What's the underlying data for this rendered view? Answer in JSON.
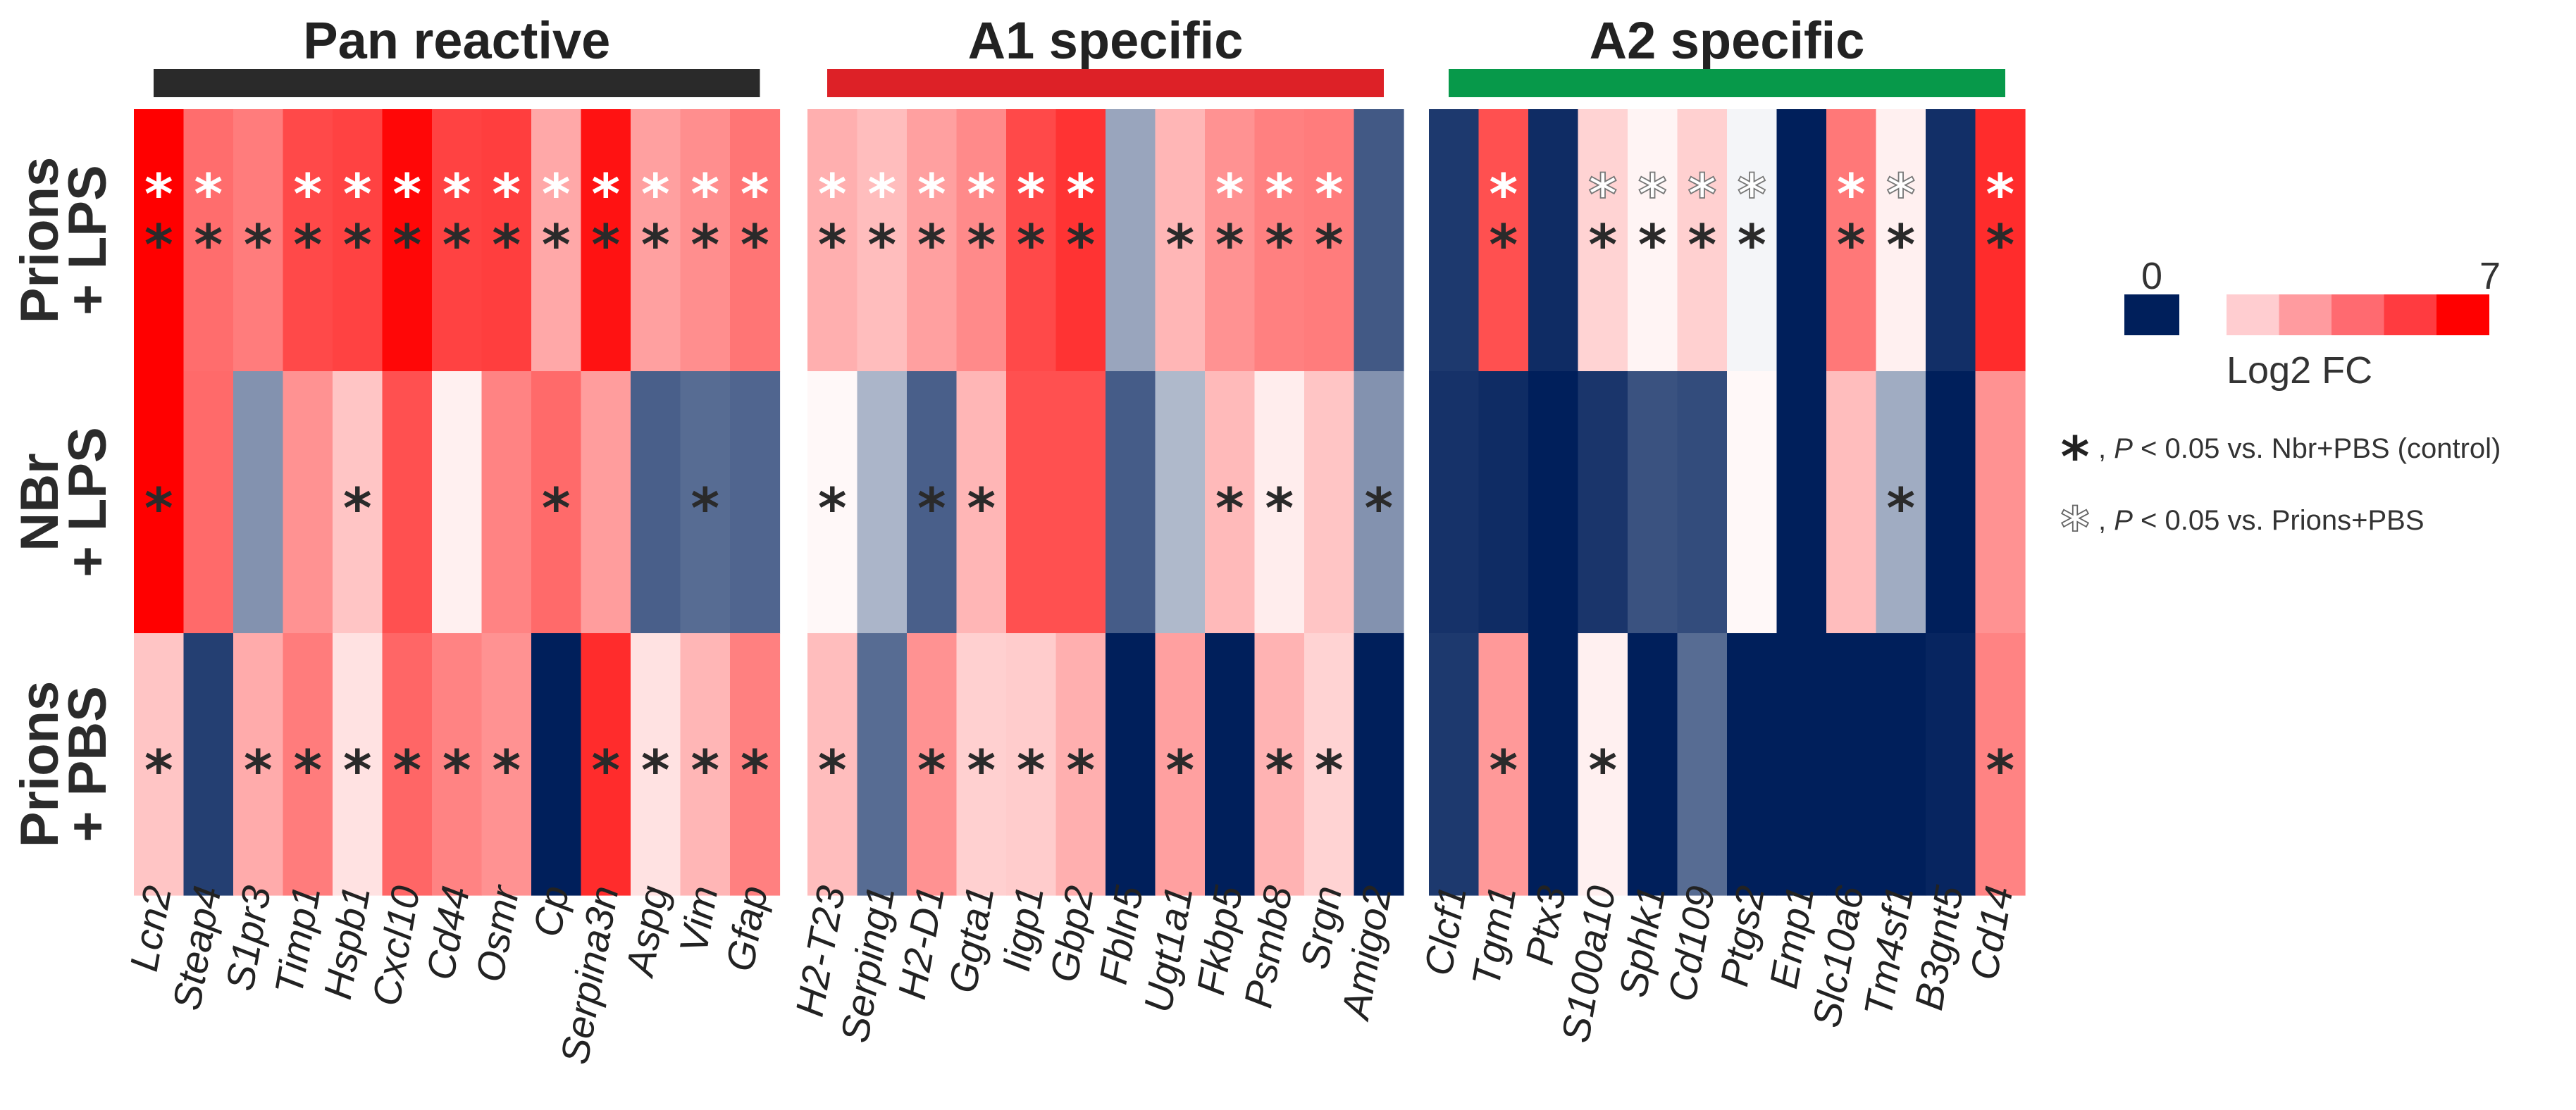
{
  "chart_data": {
    "type": "heatmap",
    "groups": [
      {
        "title": "Pan reactive",
        "bar_color": "#2a2a2a"
      },
      {
        "title": "A1 specific",
        "bar_color": "#dd2127"
      },
      {
        "title": "A2 specific",
        "bar_color": "#07994a"
      }
    ],
    "rows": [
      {
        "line1": "Prions",
        "line2": "+ LPS"
      },
      {
        "line1": "NBr",
        "line2": "+ LPS"
      },
      {
        "line1": "Prions",
        "line2": "+ PBS"
      }
    ],
    "genes": [
      [
        "Lcn2",
        "Steap4",
        "S1pr3",
        "Timp1",
        "Hspb1",
        "Cxcl10",
        "Cd44",
        "Osmr",
        "Cp",
        "Serpina3n",
        "Aspg",
        "Vim",
        "Gfap"
      ],
      [
        "H2-T23",
        "Serping1",
        "H2-D1",
        "Ggta1",
        "Iigp1",
        "Gbp2",
        "Fbln5",
        "Ugt1a1",
        "Fkbp5",
        "Psmb8",
        "Srgn",
        "Amigo2"
      ],
      [
        "Clcf1",
        "Tgm1",
        "Ptx3",
        "S100a10",
        "Sphk1",
        "Cd109",
        "Ptgs2",
        "Emp1",
        "Slc10a6",
        "Tm4sf1",
        "B3gnt5",
        "Cd14"
      ]
    ],
    "values": [
      [
        [
          7.0,
          4.0,
          3.6,
          5.0,
          5.2,
          6.8,
          5.2,
          5.3,
          2.4,
          6.5,
          2.6,
          3.1,
          3.8
        ],
        [
          7.0,
          4.1,
          -3.4,
          3.0,
          1.6,
          4.8,
          0.4,
          3.4,
          4.1,
          2.7,
          -5.0,
          -4.6,
          -4.8
        ],
        [
          1.6,
          -6.0,
          2.3,
          3.6,
          0.8,
          4.2,
          3.4,
          3.0,
          -7.0,
          5.8,
          0.8,
          2.0,
          3.5
        ]
      ],
      [
        [
          2.2,
          1.8,
          2.6,
          3.2,
          5.0,
          5.6,
          -2.8,
          2.0,
          3.0,
          3.5,
          3.6,
          -5.2
        ],
        [
          0.2,
          -2.3,
          -5.0,
          2.0,
          4.8,
          4.8,
          -5.1,
          -2.2,
          1.9,
          0.5,
          1.6,
          -3.4
        ],
        [
          1.8,
          -4.6,
          3.0,
          1.3,
          1.4,
          2.2,
          -7.0,
          2.6,
          -7.0,
          2.1,
          1.2,
          -7.0
        ]
      ],
      [
        [
          -6.2,
          4.8,
          -6.6,
          1.2,
          0.3,
          1.3,
          -0.3,
          -7.0,
          3.7,
          0.4,
          -6.5,
          5.8
        ],
        [
          -6.4,
          -6.6,
          -7.0,
          -6.3,
          -5.4,
          -5.6,
          0.2,
          -7.0,
          1.8,
          -2.6,
          -7.0,
          3.0
        ],
        [
          -6.2,
          2.8,
          -7.0,
          0.4,
          -7.0,
          -4.6,
          -7.0,
          -7.0,
          -7.0,
          -7.0,
          -6.8,
          3.4
        ]
      ]
    ],
    "significance_vs_prions_pbs": [
      [
        [
          "filled",
          "filled",
          "none",
          "filled",
          "filled",
          "filled",
          "filled",
          "filled",
          "filled",
          "filled",
          "filled",
          "filled",
          "filled"
        ],
        [
          "none",
          "none",
          "none",
          "none",
          "none",
          "none",
          "none",
          "none",
          "none",
          "none",
          "none",
          "none",
          "none"
        ],
        [
          "none",
          "none",
          "none",
          "none",
          "none",
          "none",
          "none",
          "none",
          "none",
          "none",
          "none",
          "none",
          "none"
        ]
      ],
      [
        [
          "filled",
          "filled",
          "filled",
          "filled",
          "filled",
          "filled",
          "none",
          "none",
          "filled",
          "filled",
          "filled",
          "none"
        ],
        [
          "none",
          "none",
          "none",
          "none",
          "none",
          "none",
          "none",
          "none",
          "none",
          "none",
          "none",
          "none"
        ],
        [
          "none",
          "none",
          "none",
          "none",
          "none",
          "none",
          "none",
          "none",
          "none",
          "none",
          "none",
          "none"
        ]
      ],
      [
        [
          "none",
          "filled",
          "none",
          "outline",
          "outline",
          "outline",
          "outline",
          "none",
          "filled",
          "outline",
          "none",
          "filled"
        ],
        [
          "none",
          "none",
          "none",
          "none",
          "none",
          "none",
          "none",
          "none",
          "none",
          "none",
          "none",
          "none"
        ],
        [
          "none",
          "none",
          "none",
          "none",
          "none",
          "none",
          "none",
          "none",
          "none",
          "none",
          "none",
          "none"
        ]
      ]
    ],
    "significance_vs_control": [
      [
        [
          true,
          true,
          true,
          true,
          true,
          true,
          true,
          true,
          true,
          true,
          true,
          true,
          true
        ],
        [
          true,
          false,
          false,
          false,
          true,
          false,
          false,
          false,
          true,
          false,
          false,
          true,
          false
        ],
        [
          true,
          false,
          true,
          true,
          true,
          true,
          true,
          true,
          false,
          true,
          true,
          true,
          true
        ]
      ],
      [
        [
          true,
          true,
          true,
          true,
          true,
          true,
          false,
          true,
          true,
          true,
          true,
          false
        ],
        [
          true,
          false,
          true,
          true,
          false,
          false,
          false,
          false,
          true,
          true,
          false,
          true
        ],
        [
          true,
          false,
          true,
          true,
          true,
          true,
          false,
          true,
          false,
          true,
          true,
          false
        ]
      ],
      [
        [
          false,
          true,
          false,
          true,
          true,
          true,
          true,
          false,
          true,
          true,
          false,
          true
        ],
        [
          false,
          false,
          false,
          false,
          false,
          false,
          false,
          false,
          false,
          true,
          false,
          false
        ],
        [
          false,
          true,
          false,
          true,
          false,
          false,
          false,
          false,
          false,
          false,
          false,
          true
        ]
      ]
    ],
    "color_scale": {
      "min": 0,
      "max": 7,
      "low_color": "#001f5b",
      "mid_color": "#ffffff",
      "high_color": "#ff0000",
      "min_label": "0",
      "max_label": "7",
      "label": "Log2 FC",
      "high_swatches": [
        "#ffcdd0",
        "#ff9b9f",
        "#ff6a70",
        "#ff3b40",
        "#ff0000"
      ]
    },
    "legend": {
      "filled_star": "*",
      "outline_star": "*",
      "sep": ",",
      "p": "P",
      "filled_note": " < 0.05 vs. Nbr+PBS (control)",
      "outline_note": " < 0.05 vs. Prions+PBS"
    }
  }
}
